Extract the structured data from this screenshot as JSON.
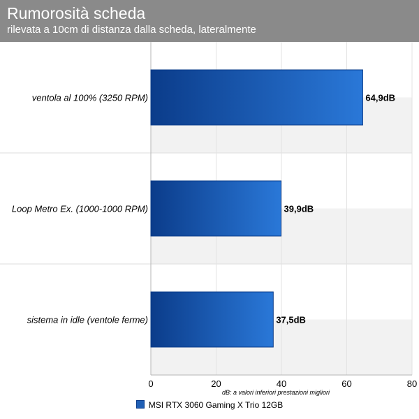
{
  "chart_data": {
    "type": "bar",
    "orientation": "horizontal",
    "title": "Rumorosità scheda",
    "subtitle": "rilevata a 10cm di distanza dalla scheda, lateralmente",
    "categories": [
      "ventola al 100% (3250 RPM)",
      "Loop Metro Ex. (1000-1000 RPM)",
      "sistema in idle (ventole ferme)"
    ],
    "series": [
      {
        "name": "MSI RTX 3060 Gaming X Trio 12GB",
        "values": [
          64.9,
          39.9,
          37.5
        ]
      }
    ],
    "data_labels": [
      "64,9dB",
      "39,9dB",
      "37,5dB"
    ],
    "xlabel": "dB: a valori inferiori prestazioni migliori",
    "xticks": [
      "0",
      "20",
      "40",
      "60",
      "80"
    ],
    "xlim": [
      0,
      80
    ],
    "grid": true,
    "legend_position": "bottom",
    "colors": {
      "bar": "#1f5fb5",
      "bar_dark": "#0b3c8a",
      "header": "#8a8a8a",
      "band": "#f2f2f2"
    }
  }
}
